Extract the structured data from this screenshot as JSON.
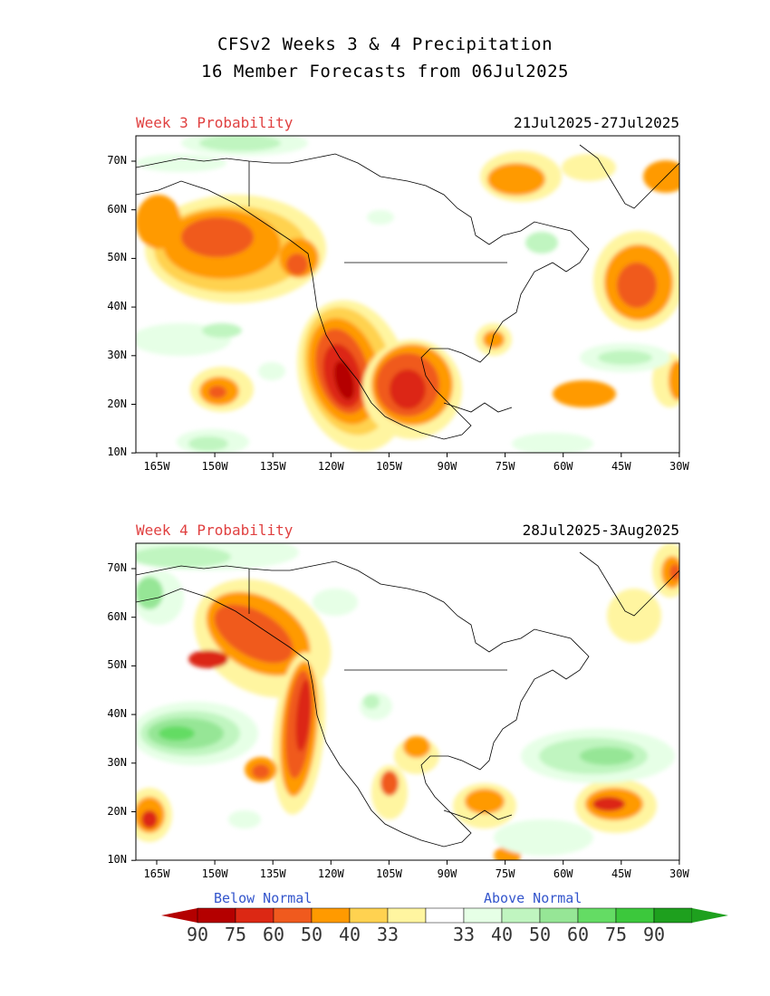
{
  "header": {
    "line1": "CFSv2 Weeks 3 & 4 Precipitation",
    "line2": "16 Member Forecasts from 06Jul2025"
  },
  "panels": [
    {
      "label": "Week 3 Probability",
      "dates": "21Jul2025-27Jul2025"
    },
    {
      "label": "Week 4 Probability",
      "dates": "28Jul2025-3Aug2025"
    }
  ],
  "axes": {
    "lat_labels": [
      "70N",
      "60N",
      "50N",
      "40N",
      "30N",
      "20N",
      "10N"
    ],
    "lon_labels": [
      "165W",
      "150W",
      "135W",
      "120W",
      "105W",
      "90W",
      "75W",
      "60W",
      "45W",
      "30W"
    ]
  },
  "legend": {
    "below": "Below Normal",
    "above": "Above Normal",
    "values": [
      "90",
      "75",
      "60",
      "50",
      "40",
      "33",
      "33",
      "40",
      "50",
      "60",
      "75",
      "90"
    ],
    "below_colors": [
      "#b40000",
      "#dc2814",
      "#f05a1e",
      "#ff9a00",
      "#ffd250",
      "#fff5a0"
    ],
    "neutral_color": "#ffffff",
    "above_colors": [
      "#e6ffe6",
      "#c0f5c0",
      "#96e696",
      "#64dc64",
      "#3cc83c",
      "#1ea01e"
    ]
  },
  "map": {
    "colors": {
      "red_dark": "#b40000",
      "red": "#dc2814",
      "orange_red": "#f05a1e",
      "orange": "#ff9a00",
      "gold": "#ffd250",
      "yellow": "#fff5a0",
      "green_pale": "#e6ffe6",
      "green_light": "#c0f5c0",
      "green": "#96e696",
      "green_mid": "#64dc64"
    }
  }
}
